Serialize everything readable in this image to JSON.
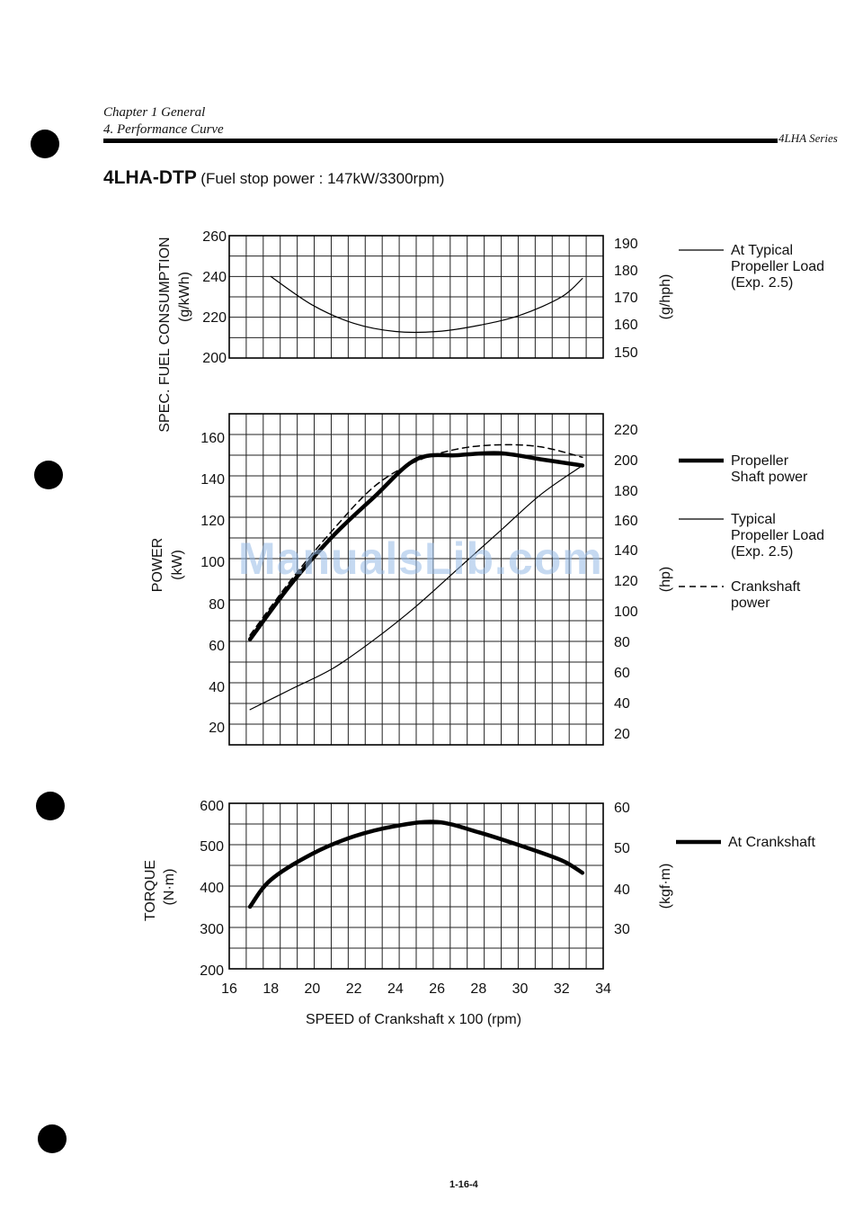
{
  "header": {
    "chapter": "Chapter 1 General",
    "section": "4. Performance Curve",
    "series": "4LHA Series"
  },
  "title": {
    "model": "4LHA-DTP",
    "subtitle": "(Fuel stop power : 147kW/3300rpm)"
  },
  "watermark": "ManualsLib.com",
  "footer": {
    "page_number": "1-16-4"
  },
  "chart_data": [
    {
      "type": "line",
      "ylabel": "SPEC. FUEL CONSUMPTION",
      "ylabel_unit": "(g/kWh)",
      "ylabel_right": "(g/hph)",
      "ylim": [
        200,
        260
      ],
      "yticks": [
        "260",
        "240",
        "220",
        "200"
      ],
      "yticks_right": [
        "190",
        "180",
        "170",
        "160",
        "150"
      ],
      "xlim": [
        16,
        34
      ],
      "grid": true,
      "series": [
        {
          "name": "At Typical Propeller Load (Exp. 2.5)",
          "style": "thin",
          "x": [
            18,
            20,
            22,
            24,
            26,
            28,
            30,
            32,
            33
          ],
          "y": [
            240,
            226,
            217,
            213,
            213,
            216,
            221,
            230,
            239
          ]
        }
      ],
      "legend": [
        {
          "style": "thin",
          "lines": [
            "At Typical",
            "Propeller Load",
            "(Exp. 2.5)"
          ]
        }
      ]
    },
    {
      "type": "line",
      "ylabel": "POWER",
      "ylabel_unit": "(kW)",
      "ylabel_right": "(hp)",
      "ylim": [
        10,
        170
      ],
      "yticks": [
        "160",
        "140",
        "120",
        "100",
        "80",
        "60",
        "40",
        "20"
      ],
      "yticks_right": [
        "220",
        "200",
        "180",
        "160",
        "140",
        "120",
        "100",
        "80",
        "60",
        "40",
        "20"
      ],
      "xlim": [
        16,
        34
      ],
      "grid": true,
      "series": [
        {
          "name": "Propeller Shaft power",
          "style": "thick",
          "x": [
            17,
            19,
            21,
            23,
            25,
            27,
            29,
            31,
            33
          ],
          "y": [
            61,
            88,
            111,
            130,
            148,
            150,
            151,
            148,
            145
          ]
        },
        {
          "name": "Typical Propeller Load (Exp. 2.5)",
          "style": "thin",
          "x": [
            17,
            19,
            21,
            23,
            25,
            27,
            29,
            31,
            33
          ],
          "y": [
            27,
            37,
            47,
            61,
            77,
            95,
            113,
            131,
            145
          ]
        },
        {
          "name": "Crankshaft power",
          "style": "dashed",
          "x": [
            17,
            19,
            21,
            23,
            25,
            27,
            29,
            31,
            33
          ],
          "y": [
            63,
            90,
            114,
            135,
            147,
            153,
            155,
            154,
            149
          ]
        }
      ],
      "legend": [
        {
          "style": "thick",
          "lines": [
            "Propeller",
            "Shaft power"
          ]
        },
        {
          "style": "thin",
          "lines": [
            "Typical",
            "Propeller Load",
            "(Exp. 2.5)"
          ]
        },
        {
          "style": "dashed",
          "lines": [
            "Crankshaft",
            "power"
          ]
        }
      ]
    },
    {
      "type": "line",
      "ylabel": "TORQUE",
      "ylabel_unit": "(N·m)",
      "ylabel_right": "(kgf·m)",
      "ylim": [
        200,
        600
      ],
      "yticks": [
        "600",
        "500",
        "400",
        "300",
        "200"
      ],
      "yticks_right": [
        "60",
        "50",
        "40",
        "30"
      ],
      "xlim": [
        16,
        34
      ],
      "xticks": [
        "16",
        "18",
        "20",
        "22",
        "24",
        "26",
        "28",
        "30",
        "32",
        "34"
      ],
      "xlabel": "SPEED of Crankshaft  x 100  (rpm)",
      "grid": true,
      "series": [
        {
          "name": "At Crankshaft",
          "style": "thick",
          "x": [
            17,
            18,
            20,
            22,
            24,
            26,
            28,
            30,
            32,
            33
          ],
          "y": [
            350,
            415,
            478,
            520,
            545,
            555,
            530,
            498,
            462,
            432
          ]
        }
      ],
      "legend": [
        {
          "style": "thick",
          "lines": [
            "At Crankshaft"
          ]
        }
      ]
    }
  ]
}
